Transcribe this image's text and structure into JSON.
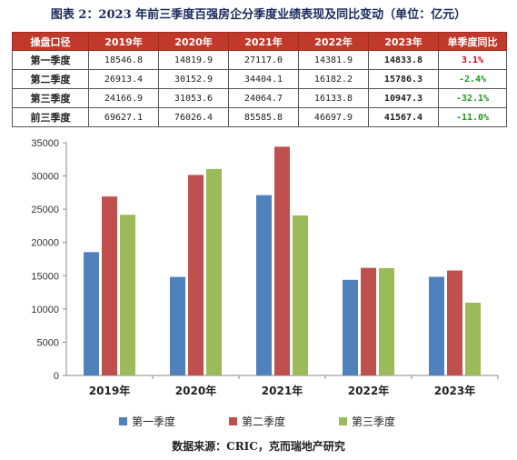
{
  "title": "图表 2：2023 年前三季度百强房企分季度业绩表现及同比变动（单位：亿元）",
  "table": {
    "headers": [
      "操盘口径",
      "2019年",
      "2020年",
      "2021年",
      "2022年",
      "2023年",
      "单季度同比"
    ],
    "rows": [
      {
        "label": "第一季度",
        "v2019": "18546.8",
        "v2020": "14819.9",
        "v2021": "27117.0",
        "v2022": "14381.9",
        "v2023": "14833.8",
        "yoy": "3.1%",
        "yoy_color": "#d0021b"
      },
      {
        "label": "第二季度",
        "v2019": "26913.4",
        "v2020": "30152.9",
        "v2021": "34404.1",
        "v2022": "16182.2",
        "v2023": "15786.3",
        "yoy": "-2.4%",
        "yoy_color": "#1a9a1a"
      },
      {
        "label": "第三季度",
        "v2019": "24166.9",
        "v2020": "31053.6",
        "v2021": "24064.7",
        "v2022": "16133.8",
        "v2023": "10947.3",
        "yoy": "-32.1%",
        "yoy_color": "#1a9a1a"
      },
      {
        "label": "前三季度",
        "v2019": "69627.1",
        "v2020": "76026.4",
        "v2021": "85585.8",
        "v2022": "46697.9",
        "v2023": "41567.4",
        "yoy": "-11.0%",
        "yoy_color": "#1a9a1a"
      }
    ]
  },
  "chart_data": {
    "type": "bar",
    "categories": [
      "2019年",
      "2020年",
      "2021年",
      "2022年",
      "2023年"
    ],
    "series": [
      {
        "name": "第一季度",
        "color": "#4f81bd",
        "values": [
          18546.8,
          14819.9,
          27117.0,
          14381.9,
          14833.8
        ]
      },
      {
        "name": "第二季度",
        "color": "#c0504d",
        "values": [
          26913.4,
          30152.9,
          34404.1,
          16182.2,
          15786.3
        ]
      },
      {
        "name": "第三季度",
        "color": "#9bbb59",
        "values": [
          24166.9,
          31053.6,
          24064.7,
          16133.8,
          10947.3
        ]
      }
    ],
    "ylim": [
      0,
      35000
    ],
    "yticks": [
      0,
      5000,
      10000,
      15000,
      20000,
      25000,
      30000,
      35000
    ],
    "legend": "bottom",
    "grid": false
  },
  "source": "数据来源：CRIC，克而瑞地产研究"
}
